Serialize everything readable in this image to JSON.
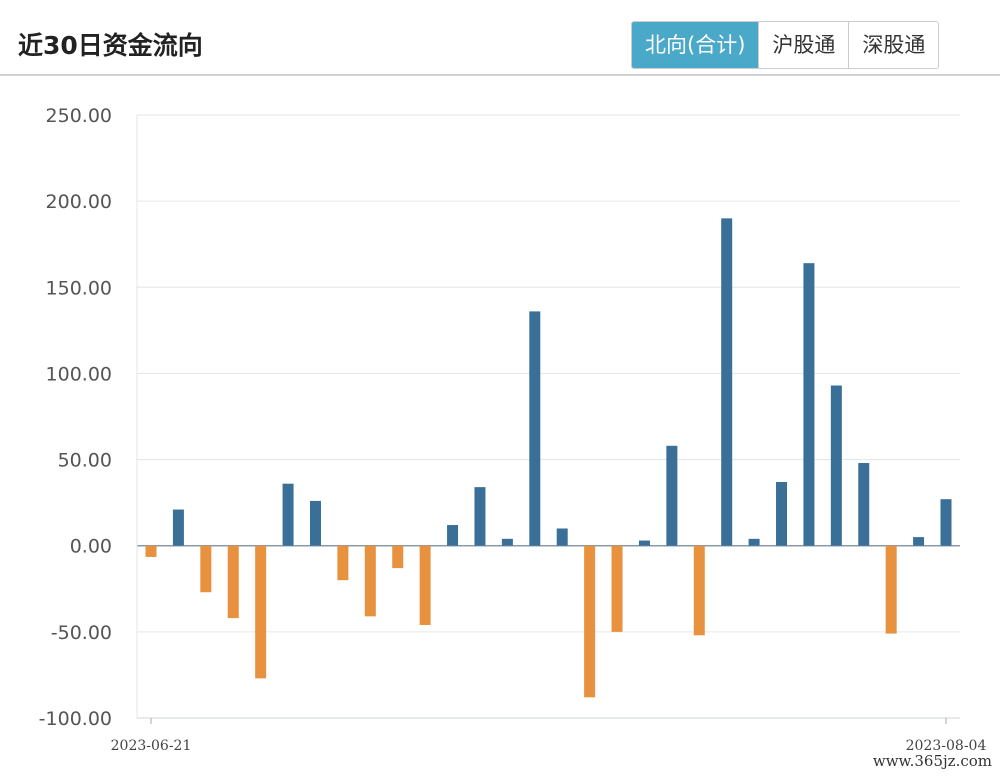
{
  "header": {
    "title": "近30日资金流向",
    "tabs": [
      {
        "label": "北向(合计)",
        "active": true
      },
      {
        "label": "沪股通",
        "active": false
      },
      {
        "label": "深股通",
        "active": false
      }
    ]
  },
  "colors": {
    "positive": "#3a6f97",
    "negative": "#e8913f",
    "accent": "#4aa8c8"
  },
  "watermark": "www.365jz.com",
  "chart_data": {
    "type": "bar",
    "title": "近30日资金流向",
    "ylim": [
      -100,
      250
    ],
    "yticks": [
      -100,
      -50,
      0,
      50,
      100,
      150,
      200,
      250
    ],
    "ytick_labels": [
      "-100.00",
      "-50.00",
      "0.00",
      "50.00",
      "100.00",
      "150.00",
      "200.00",
      "250.00"
    ],
    "xtick_labels": [
      "2023-06-21",
      "2023-08-04"
    ],
    "grid": true,
    "values": [
      -6.5,
      21,
      -27,
      -42,
      -77,
      36,
      26,
      -20,
      -41,
      -13,
      -46,
      12,
      34,
      4,
      136,
      10,
      -88,
      -50,
      3,
      58,
      -52,
      190,
      4,
      37,
      164,
      93,
      48,
      -51,
      5,
      27
    ]
  }
}
